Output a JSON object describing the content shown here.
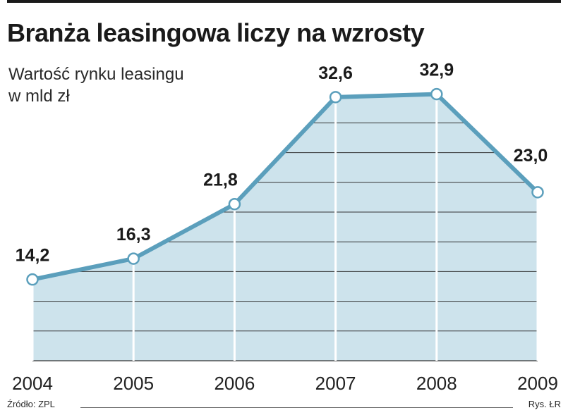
{
  "header": {
    "title": "Branża leasingowa liczy na wzrosty",
    "subtitle": "Wartość rynku leasingu w mld zł"
  },
  "footer": {
    "source": "Źródło: ZPL",
    "credit": "Rys. ŁR"
  },
  "colors": {
    "line": "#5b9fbc",
    "fill": "#cde3ec",
    "grid": "#333333",
    "text": "#1a1a1a"
  },
  "chart_data": {
    "type": "area",
    "title": "Branża leasingowa liczy na wzrosty",
    "subtitle": "Wartość rynku leasingu w mld zł",
    "xlabel": "",
    "ylabel": "",
    "categories": [
      "2004",
      "2005",
      "2006",
      "2007",
      "2008",
      "2009"
    ],
    "values": [
      14.2,
      16.3,
      21.8,
      32.6,
      32.9,
      23.0
    ],
    "value_labels": [
      "14,2",
      "16,3",
      "21,8",
      "32,6",
      "32,9",
      "23,0"
    ],
    "ylim": [
      6,
      36
    ],
    "grid": true,
    "legend": "none"
  }
}
